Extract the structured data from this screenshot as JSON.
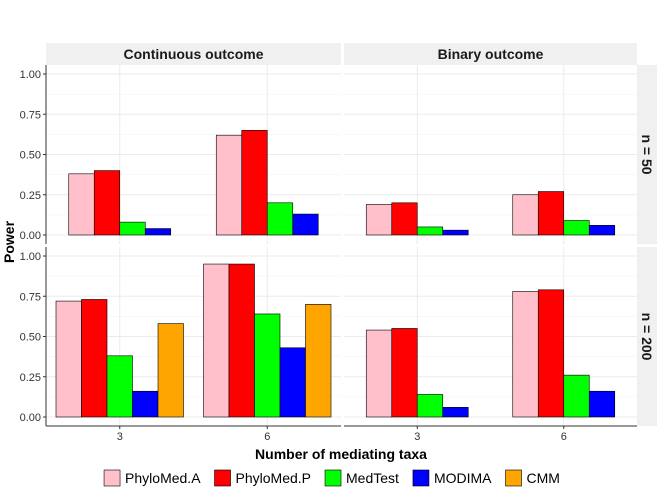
{
  "chart_data": {
    "type": "bar",
    "layout": "faceted-grid",
    "xlabel": "Number of mediating taxa",
    "ylabel": "Power",
    "ylim": [
      0,
      1
    ],
    "yticks": [
      "0.00",
      "0.25",
      "0.50",
      "0.75",
      "1.00"
    ],
    "categories": [
      "3",
      "6"
    ],
    "legend": {
      "position": "bottom",
      "entries": [
        {
          "name": "PhyloMed.A",
          "color": "#FFC0CB"
        },
        {
          "name": "PhyloMed.P",
          "color": "#FF0000"
        },
        {
          "name": "MedTest",
          "color": "#00FF00"
        },
        {
          "name": "MODIMA",
          "color": "#0000FF"
        },
        {
          "name": "CMM",
          "color": "#FFA500"
        }
      ]
    },
    "columns": [
      "Continuous outcome",
      "Binary outcome"
    ],
    "rows": [
      "n = 50",
      "n = 200"
    ],
    "panels": [
      {
        "column": "Continuous outcome",
        "row": "n = 50",
        "series": [
          {
            "name": "PhyloMed.A",
            "values": [
              0.38,
              0.62
            ]
          },
          {
            "name": "PhyloMed.P",
            "values": [
              0.4,
              0.65
            ]
          },
          {
            "name": "MedTest",
            "values": [
              0.08,
              0.2
            ]
          },
          {
            "name": "MODIMA",
            "values": [
              0.04,
              0.13
            ]
          }
        ]
      },
      {
        "column": "Binary outcome",
        "row": "n = 50",
        "series": [
          {
            "name": "PhyloMed.A",
            "values": [
              0.19,
              0.25
            ]
          },
          {
            "name": "PhyloMed.P",
            "values": [
              0.2,
              0.27
            ]
          },
          {
            "name": "MedTest",
            "values": [
              0.05,
              0.09
            ]
          },
          {
            "name": "MODIMA",
            "values": [
              0.03,
              0.06
            ]
          }
        ]
      },
      {
        "column": "Continuous outcome",
        "row": "n = 200",
        "series": [
          {
            "name": "PhyloMed.A",
            "values": [
              0.72,
              0.95
            ]
          },
          {
            "name": "PhyloMed.P",
            "values": [
              0.73,
              0.95
            ]
          },
          {
            "name": "MedTest",
            "values": [
              0.38,
              0.64
            ]
          },
          {
            "name": "MODIMA",
            "values": [
              0.16,
              0.43
            ]
          },
          {
            "name": "CMM",
            "values": [
              0.58,
              0.7
            ]
          }
        ]
      },
      {
        "column": "Binary outcome",
        "row": "n = 200",
        "series": [
          {
            "name": "PhyloMed.A",
            "values": [
              0.54,
              0.78
            ]
          },
          {
            "name": "PhyloMed.P",
            "values": [
              0.55,
              0.79
            ]
          },
          {
            "name": "MedTest",
            "values": [
              0.14,
              0.26
            ]
          },
          {
            "name": "MODIMA",
            "values": [
              0.06,
              0.16
            ]
          }
        ]
      }
    ]
  }
}
